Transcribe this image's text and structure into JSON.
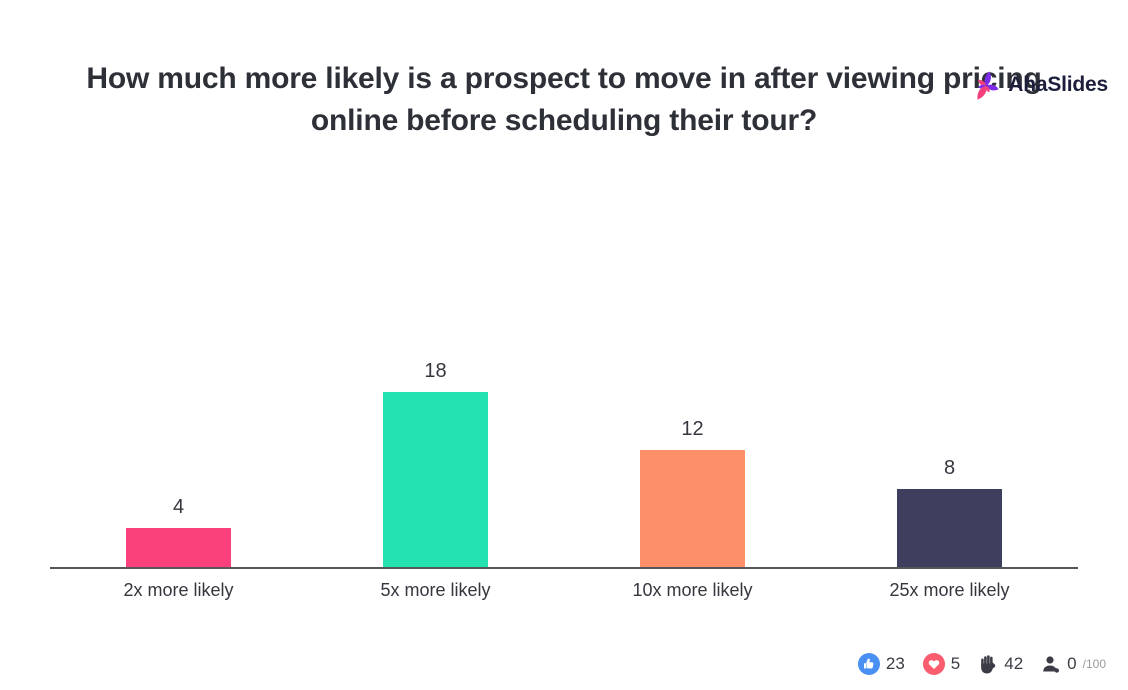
{
  "brand": {
    "name": "AhaSlides"
  },
  "title": "How much more likely is a prospect to move in after viewing pricing online before scheduling their tour?",
  "chart_data": {
    "type": "bar",
    "title": "How much more likely is a prospect to move in after viewing pricing online before scheduling their tour?",
    "categories": [
      "2x more likely",
      "5x more likely",
      "10x more likely",
      "25x more likely"
    ],
    "values": [
      4,
      18,
      12,
      8
    ],
    "bar_colors": [
      "#FB417B",
      "#25E2B1",
      "#FD8F69",
      "#3E3F5E"
    ],
    "xlabel": "",
    "ylabel": "",
    "ylim": [
      0,
      18
    ],
    "grid": false,
    "legend": false,
    "value_labels": true
  },
  "stats": {
    "likes": "23",
    "hearts": "5",
    "raised_hands": "42",
    "participants": "0",
    "participants_max": "/100"
  },
  "colors": {
    "like_blue": "#4A90F4",
    "heart_pink": "#FB5C6E",
    "hand_dark": "#3C3C46",
    "axis": "#55565A",
    "title_text": "#2E3038",
    "logo_pink": "#F4407D",
    "logo_purple": "#7C2BE8"
  }
}
